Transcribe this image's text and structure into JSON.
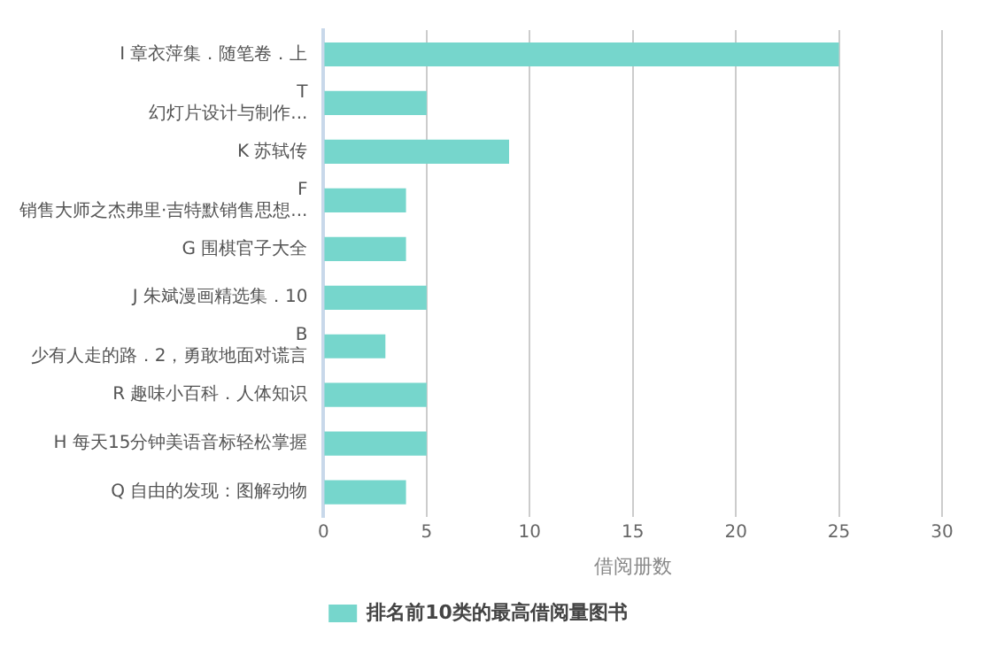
{
  "chart_data": {
    "type": "bar",
    "orientation": "horizontal",
    "categories": [
      "I 章衣萍集．随笔卷．上",
      "T\n幻灯片设计与制作...",
      "K 苏轼传",
      "F\n销售大师之杰弗里·吉特默销售思想...",
      "G 围棋官子大全",
      "J 朱斌漫画精选集．10",
      "B\n少有人走的路．2，勇敢地面对谎言",
      "R 趣味小百科．人体知识",
      "H 每天15分钟美语音标轻松掌握",
      "Q 自由的发现：图解动物"
    ],
    "series": [
      {
        "name": "排名前10类的最高借阅量图书",
        "color": "#76d6cc",
        "values": [
          25,
          5,
          9,
          4,
          4,
          5,
          3,
          5,
          5,
          4
        ]
      }
    ],
    "xlabel": "借阅册数",
    "xlim": [
      0,
      30
    ],
    "xticks": [
      0,
      5,
      10,
      15,
      20,
      25,
      30
    ],
    "grid": "x",
    "legend": "bottom"
  }
}
